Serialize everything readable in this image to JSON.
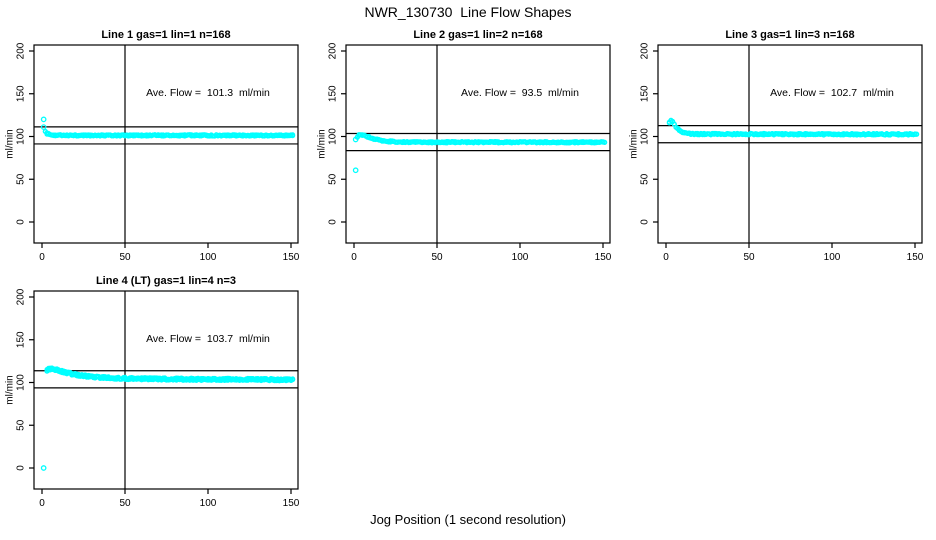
{
  "figure": {
    "main_title": "NWR_130730  Line Flow Shapes",
    "x_axis_label": "Jog Position (1 second resolution)",
    "background_color": "#FFFFFF",
    "marker_color": "#00FFFF",
    "axis_color": "#000000"
  },
  "chart_data": [
    {
      "type": "scatter",
      "title": "Line 1 gas=1 lin=1 n=168",
      "annotation": "Ave. Flow =  101.3  ml/min",
      "ave_flow_ml_min": 101.3,
      "ylabel": "ml/min",
      "x_ticks": [
        0,
        50,
        100,
        150
      ],
      "y_ticks": [
        0,
        50,
        100,
        150,
        200
      ],
      "xlim": [
        -5,
        155
      ],
      "ylim": [
        -25,
        207
      ],
      "grid": false,
      "vline_x": 50,
      "hlines": [
        111.3,
        91.3
      ],
      "outliers": [
        [
          1,
          120
        ],
        [
          1,
          111
        ]
      ],
      "profile": [
        [
          2,
          105.5
        ],
        [
          3,
          103.5
        ],
        [
          5,
          102.0
        ],
        [
          8,
          101.4
        ],
        [
          15,
          101.3
        ],
        [
          151,
          101.2
        ]
      ],
      "noise": 0.8,
      "points_per_x": 2,
      "x_start": 2,
      "x_end": 151
    },
    {
      "type": "scatter",
      "title": "Line 2 gas=1 lin=2 n=168",
      "annotation": "Ave. Flow =  93.5  ml/min",
      "ave_flow_ml_min": 93.5,
      "ylabel": "ml/min",
      "x_ticks": [
        0,
        50,
        100,
        150
      ],
      "y_ticks": [
        0,
        50,
        100,
        150,
        200
      ],
      "xlim": [
        -5,
        155
      ],
      "ylim": [
        -25,
        207
      ],
      "grid": false,
      "vline_x": 50,
      "hlines": [
        103.5,
        83.5
      ],
      "outliers": [
        [
          1,
          60.5
        ],
        [
          1,
          96.5
        ]
      ],
      "profile": [
        [
          2,
          99.5
        ],
        [
          3,
          101.3
        ],
        [
          4,
          102.2
        ],
        [
          6,
          101.6
        ],
        [
          8,
          100.0
        ],
        [
          11,
          97.8
        ],
        [
          15,
          95.8
        ],
        [
          20,
          94.4
        ],
        [
          28,
          93.6
        ],
        [
          40,
          93.3
        ],
        [
          151,
          93.2
        ]
      ],
      "noise": 0.8,
      "points_per_x": 2,
      "x_start": 2,
      "x_end": 151
    },
    {
      "type": "scatter",
      "title": "Line 3 gas=1 lin=3 n=168",
      "annotation": "Ave. Flow =  102.7  ml/min",
      "ave_flow_ml_min": 102.7,
      "ylabel": "ml/min",
      "x_ticks": [
        0,
        50,
        100,
        150
      ],
      "y_ticks": [
        0,
        50,
        100,
        150,
        200
      ],
      "xlim": [
        -5,
        155
      ],
      "ylim": [
        -25,
        207
      ],
      "grid": false,
      "vline_x": 50,
      "hlines": [
        112.7,
        92.7
      ],
      "outliers": [],
      "profile": [
        [
          2,
          116.5
        ],
        [
          3,
          118.5
        ],
        [
          4,
          117.0
        ],
        [
          5,
          113.8
        ],
        [
          6,
          110.8
        ],
        [
          8,
          107.0
        ],
        [
          10,
          104.8
        ],
        [
          13,
          103.3
        ],
        [
          18,
          102.8
        ],
        [
          151,
          102.5
        ]
      ],
      "noise": 0.9,
      "points_per_x": 2,
      "x_start": 2,
      "x_end": 151
    },
    {
      "type": "scatter",
      "title": "Line 4 (LT) gas=1 lin=4 n=3",
      "annotation": "Ave. Flow =  103.7  ml/min",
      "ave_flow_ml_min": 103.7,
      "ylabel": "ml/min",
      "x_ticks": [
        0,
        50,
        100,
        150
      ],
      "y_ticks": [
        0,
        50,
        100,
        150,
        200
      ],
      "xlim": [
        -5,
        155
      ],
      "ylim": [
        -25,
        207
      ],
      "grid": false,
      "vline_x": 50,
      "hlines": [
        113.7,
        93.7
      ],
      "outliers": [
        [
          1,
          0
        ]
      ],
      "profile": [
        [
          3,
          114.3
        ],
        [
          4,
          115.4
        ],
        [
          6,
          115.8
        ],
        [
          9,
          114.6
        ],
        [
          13,
          112.3
        ],
        [
          18,
          110.0
        ],
        [
          24,
          108.0
        ],
        [
          32,
          106.2
        ],
        [
          45,
          104.9
        ],
        [
          60,
          104.3
        ],
        [
          85,
          103.8
        ],
        [
          120,
          103.5
        ],
        [
          151,
          103.3
        ]
      ],
      "noise": 1.35,
      "points_per_x": 3,
      "x_start": 3,
      "x_end": 151
    }
  ]
}
